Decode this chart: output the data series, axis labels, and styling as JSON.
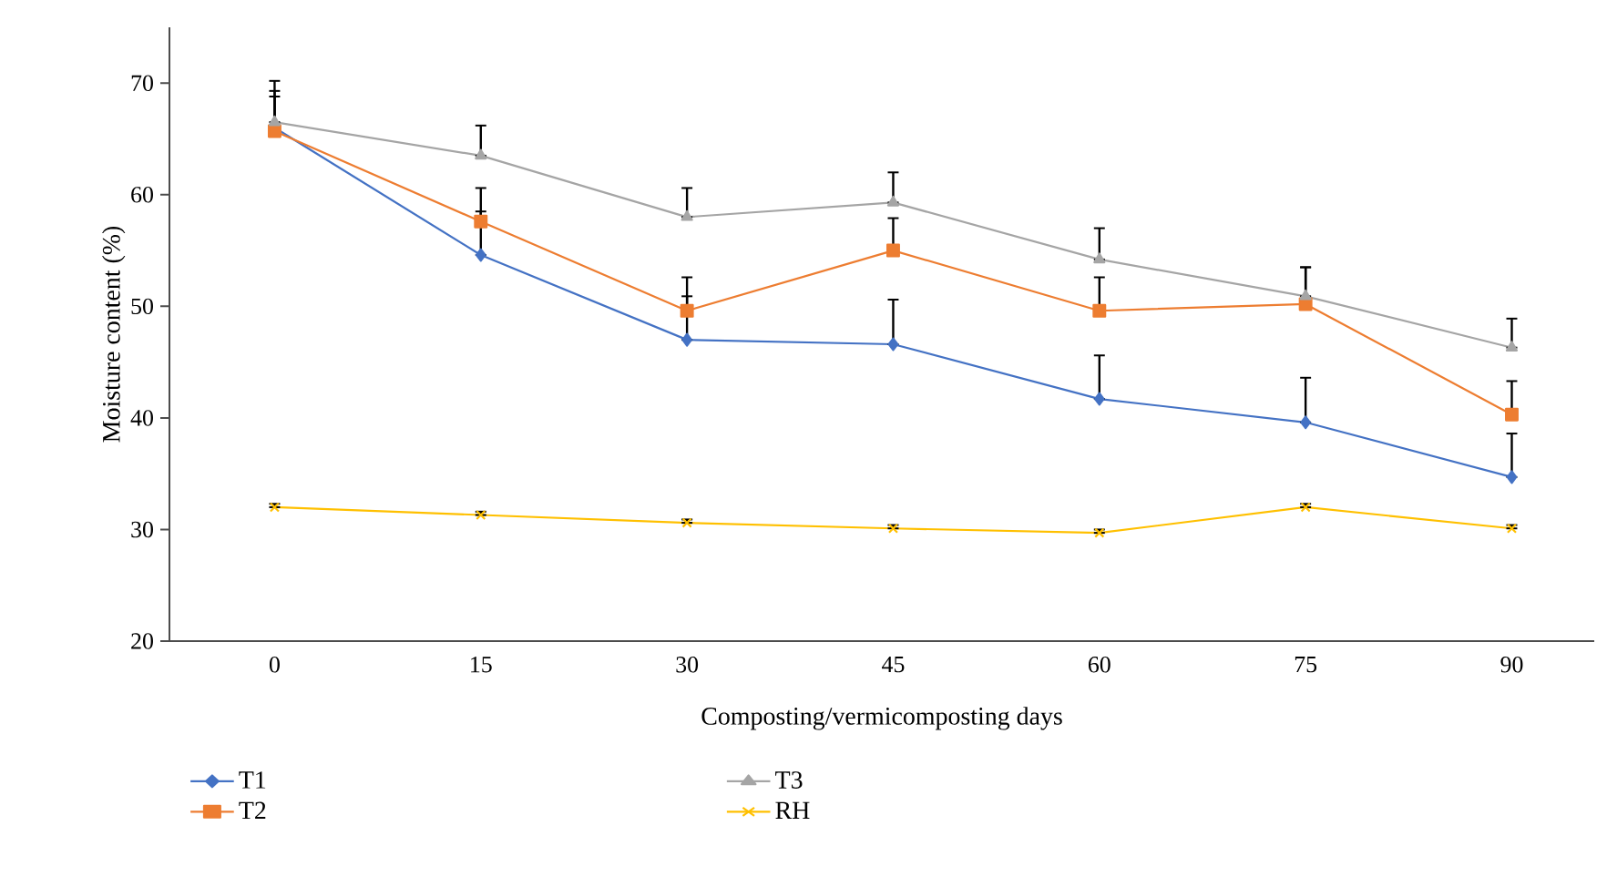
{
  "chart_data": {
    "type": "line",
    "xlabel": "Composting/vermicomposting days",
    "ylabel": "Moisture content (%)",
    "categories": [
      "0",
      "15",
      "30",
      "45",
      "60",
      "75",
      "90"
    ],
    "ylim": [
      20,
      75
    ],
    "yticks": [
      20,
      30,
      40,
      50,
      60,
      70
    ],
    "grid": false,
    "legend": "bottom",
    "line_style": "solid",
    "series": [
      {
        "name": "T1",
        "color": "#4472c4",
        "marker": "diamond",
        "values": [
          66.0,
          54.6,
          47.0,
          46.6,
          41.7,
          39.6,
          34.7
        ],
        "errors": [
          [
            66.0,
            69.3
          ],
          [
            54.6,
            58.5
          ],
          [
            47.0,
            50.9
          ],
          [
            46.6,
            50.6
          ],
          [
            41.7,
            45.6
          ],
          [
            39.6,
            43.6
          ],
          [
            34.7,
            38.6
          ]
        ]
      },
      {
        "name": "T2",
        "color": "#ed7d31",
        "marker": "square",
        "values": [
          65.7,
          57.6,
          49.6,
          55.0,
          49.6,
          50.2,
          40.3
        ],
        "errors": [
          [
            65.7,
            68.8
          ],
          [
            57.6,
            60.6
          ],
          [
            49.6,
            52.6
          ],
          [
            55.0,
            57.9
          ],
          [
            49.6,
            52.6
          ],
          [
            50.2,
            53.5
          ],
          [
            40.3,
            43.3
          ]
        ]
      },
      {
        "name": "T3",
        "color": "#a5a5a5",
        "marker": "triangle",
        "values": [
          66.5,
          63.5,
          58.0,
          59.3,
          54.2,
          50.9,
          46.3
        ],
        "errors": [
          [
            66.5,
            70.2
          ],
          [
            63.5,
            66.2
          ],
          [
            58.0,
            60.6
          ],
          [
            59.3,
            62.0
          ],
          [
            54.2,
            57.0
          ],
          [
            50.9,
            53.5
          ],
          [
            46.3,
            48.9
          ]
        ]
      },
      {
        "name": "RH",
        "color": "#ffc000",
        "marker": "cross",
        "values": [
          32.0,
          31.3,
          30.6,
          30.1,
          29.7,
          32.0,
          30.1
        ],
        "errors": [
          [
            32.0,
            32.3
          ],
          [
            31.3,
            31.6
          ],
          [
            30.6,
            30.9
          ],
          [
            30.1,
            30.4
          ],
          [
            29.7,
            30.0
          ],
          [
            32.0,
            32.3
          ],
          [
            30.1,
            30.4
          ]
        ]
      }
    ]
  }
}
